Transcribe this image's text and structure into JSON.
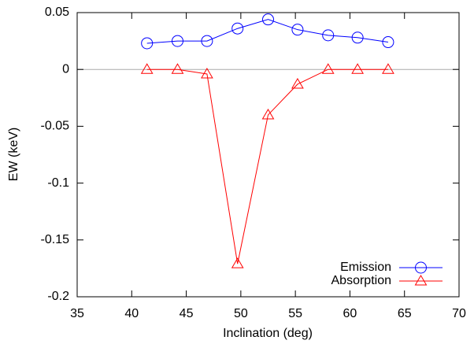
{
  "chart_data": {
    "type": "line",
    "x_label": "Inclination (deg)",
    "y_label": "EW (keV)",
    "x": [
      41.4,
      44.2,
      46.9,
      49.7,
      52.5,
      55.2,
      58.0,
      60.7,
      63.5
    ],
    "series": [
      {
        "name": "Emission",
        "color": "#0000ff",
        "marker": "circle",
        "values": [
          0.023,
          0.025,
          0.025,
          0.036,
          0.044,
          0.035,
          0.03,
          0.028,
          0.024
        ]
      },
      {
        "name": "Absorption",
        "color": "#ff0000",
        "marker": "triangle",
        "values": [
          0,
          0,
          -0.004,
          -0.171,
          -0.04,
          -0.013,
          0,
          0,
          0
        ]
      }
    ],
    "xlim": [
      35,
      70
    ],
    "xticks": [
      35,
      40,
      45,
      50,
      55,
      60,
      65,
      70
    ],
    "ylim": [
      -0.2,
      0.05
    ],
    "yticks": [
      -0.2,
      -0.15,
      -0.1,
      -0.05,
      0,
      0.05
    ],
    "zero_line": true,
    "legend": "bottom-right"
  }
}
